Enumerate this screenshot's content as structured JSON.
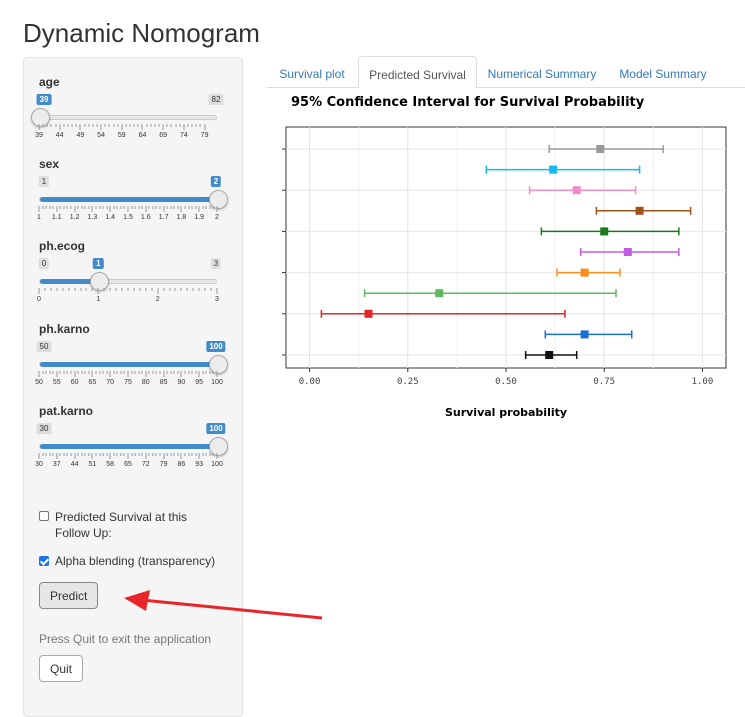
{
  "app": {
    "title": "Dynamic Nomogram"
  },
  "sliders": [
    {
      "label": "age",
      "min": 39,
      "max": 82,
      "value": 39,
      "min_label": "39",
      "max_label": "82",
      "value_label": "39",
      "ticks": [
        "39",
        "44",
        "49",
        "54",
        "59",
        "64",
        "69",
        "74",
        "79"
      ],
      "tick_values": [
        39,
        44,
        49,
        54,
        59,
        64,
        69,
        74,
        79
      ],
      "show_fill": false
    },
    {
      "label": "sex",
      "min": 1,
      "max": 2,
      "value": 2,
      "min_label": "1",
      "max_label": "2",
      "value_label": "2",
      "ticks": [
        "1",
        "1.1",
        "1.2",
        "1.3",
        "1.4",
        "1.5",
        "1.6",
        "1.7",
        "1.8",
        "1.9",
        "2"
      ],
      "tick_values": [
        1,
        1.1,
        1.2,
        1.3,
        1.4,
        1.5,
        1.6,
        1.7,
        1.8,
        1.9,
        2
      ],
      "show_fill": true
    },
    {
      "label": "ph.ecog",
      "min": 0,
      "max": 3,
      "value": 1,
      "min_label": "0",
      "max_label": "3",
      "value_label": "1",
      "ticks": [
        "0",
        "1",
        "2",
        "3"
      ],
      "tick_values": [
        0,
        1,
        2,
        3
      ],
      "show_fill": true
    },
    {
      "label": "ph.karno",
      "min": 50,
      "max": 100,
      "value": 100,
      "min_label": "50",
      "max_label": "100",
      "value_label": "100",
      "ticks": [
        "50",
        "55",
        "60",
        "65",
        "70",
        "75",
        "80",
        "85",
        "90",
        "95",
        "100"
      ],
      "tick_values": [
        50,
        55,
        60,
        65,
        70,
        75,
        80,
        85,
        90,
        95,
        100
      ],
      "show_fill": true
    },
    {
      "label": "pat.karno",
      "min": 30,
      "max": 100,
      "value": 100,
      "min_label": "30",
      "max_label": "100",
      "value_label": "100",
      "ticks": [
        "30",
        "37",
        "44",
        "51",
        "58",
        "65",
        "72",
        "79",
        "86",
        "93",
        "100"
      ],
      "tick_values": [
        30,
        37,
        44,
        51,
        58,
        65,
        72,
        79,
        86,
        93,
        100
      ],
      "show_fill": true
    }
  ],
  "checkboxes": {
    "followup": {
      "label": "Predicted Survival at this Follow Up:",
      "checked": false
    },
    "alpha": {
      "label": "Alpha blending (transparency)",
      "checked": true
    }
  },
  "buttons": {
    "predict": "Predict",
    "quit": "Quit"
  },
  "help_text": "Press Quit to exit the application",
  "tabs": [
    {
      "label": "Survival plot",
      "active": false
    },
    {
      "label": "Predicted Survival",
      "active": true
    },
    {
      "label": "Numerical Summary",
      "active": false
    },
    {
      "label": "Model Summary",
      "active": false
    }
  ],
  "colors": {
    "accent": "#428bca",
    "arrow": "#e8262a",
    "link": "#337ab7"
  },
  "chart_data": {
    "type": "scatter",
    "title": "95% Confidence Interval for Survival Probability",
    "xlabel": "Survival probability",
    "ylabel": "",
    "xlim": [
      -0.06,
      1.06
    ],
    "xticks": [
      0,
      0.25,
      0.5,
      0.75,
      1
    ],
    "xtick_labels": [
      "0.00",
      "0.25",
      "0.50",
      "0.75",
      "1.00"
    ],
    "grid": true,
    "intervals": [
      {
        "color": "#999999",
        "estimate": 0.74,
        "lower": 0.61,
        "upper": 0.9
      },
      {
        "color": "#14b9f0",
        "estimate": 0.62,
        "lower": 0.45,
        "upper": 0.84
      },
      {
        "color": "#f28cc8",
        "estimate": 0.68,
        "lower": 0.56,
        "upper": 0.83
      },
      {
        "color": "#a0521a",
        "estimate": 0.84,
        "lower": 0.73,
        "upper": 0.97
      },
      {
        "color": "#1a7a1a",
        "estimate": 0.75,
        "lower": 0.59,
        "upper": 0.94
      },
      {
        "color": "#c35ce0",
        "estimate": 0.81,
        "lower": 0.69,
        "upper": 0.94
      },
      {
        "color": "#ff8c1a",
        "estimate": 0.7,
        "lower": 0.63,
        "upper": 0.79
      },
      {
        "color": "#5fb85f",
        "estimate": 0.33,
        "lower": 0.14,
        "upper": 0.78
      },
      {
        "color": "#e0262a",
        "estimate": 0.15,
        "lower": 0.03,
        "upper": 0.65
      },
      {
        "color": "#1a6fd0",
        "estimate": 0.7,
        "lower": 0.6,
        "upper": 0.82
      },
      {
        "color": "#111111",
        "estimate": 0.61,
        "lower": 0.55,
        "upper": 0.68
      }
    ]
  }
}
